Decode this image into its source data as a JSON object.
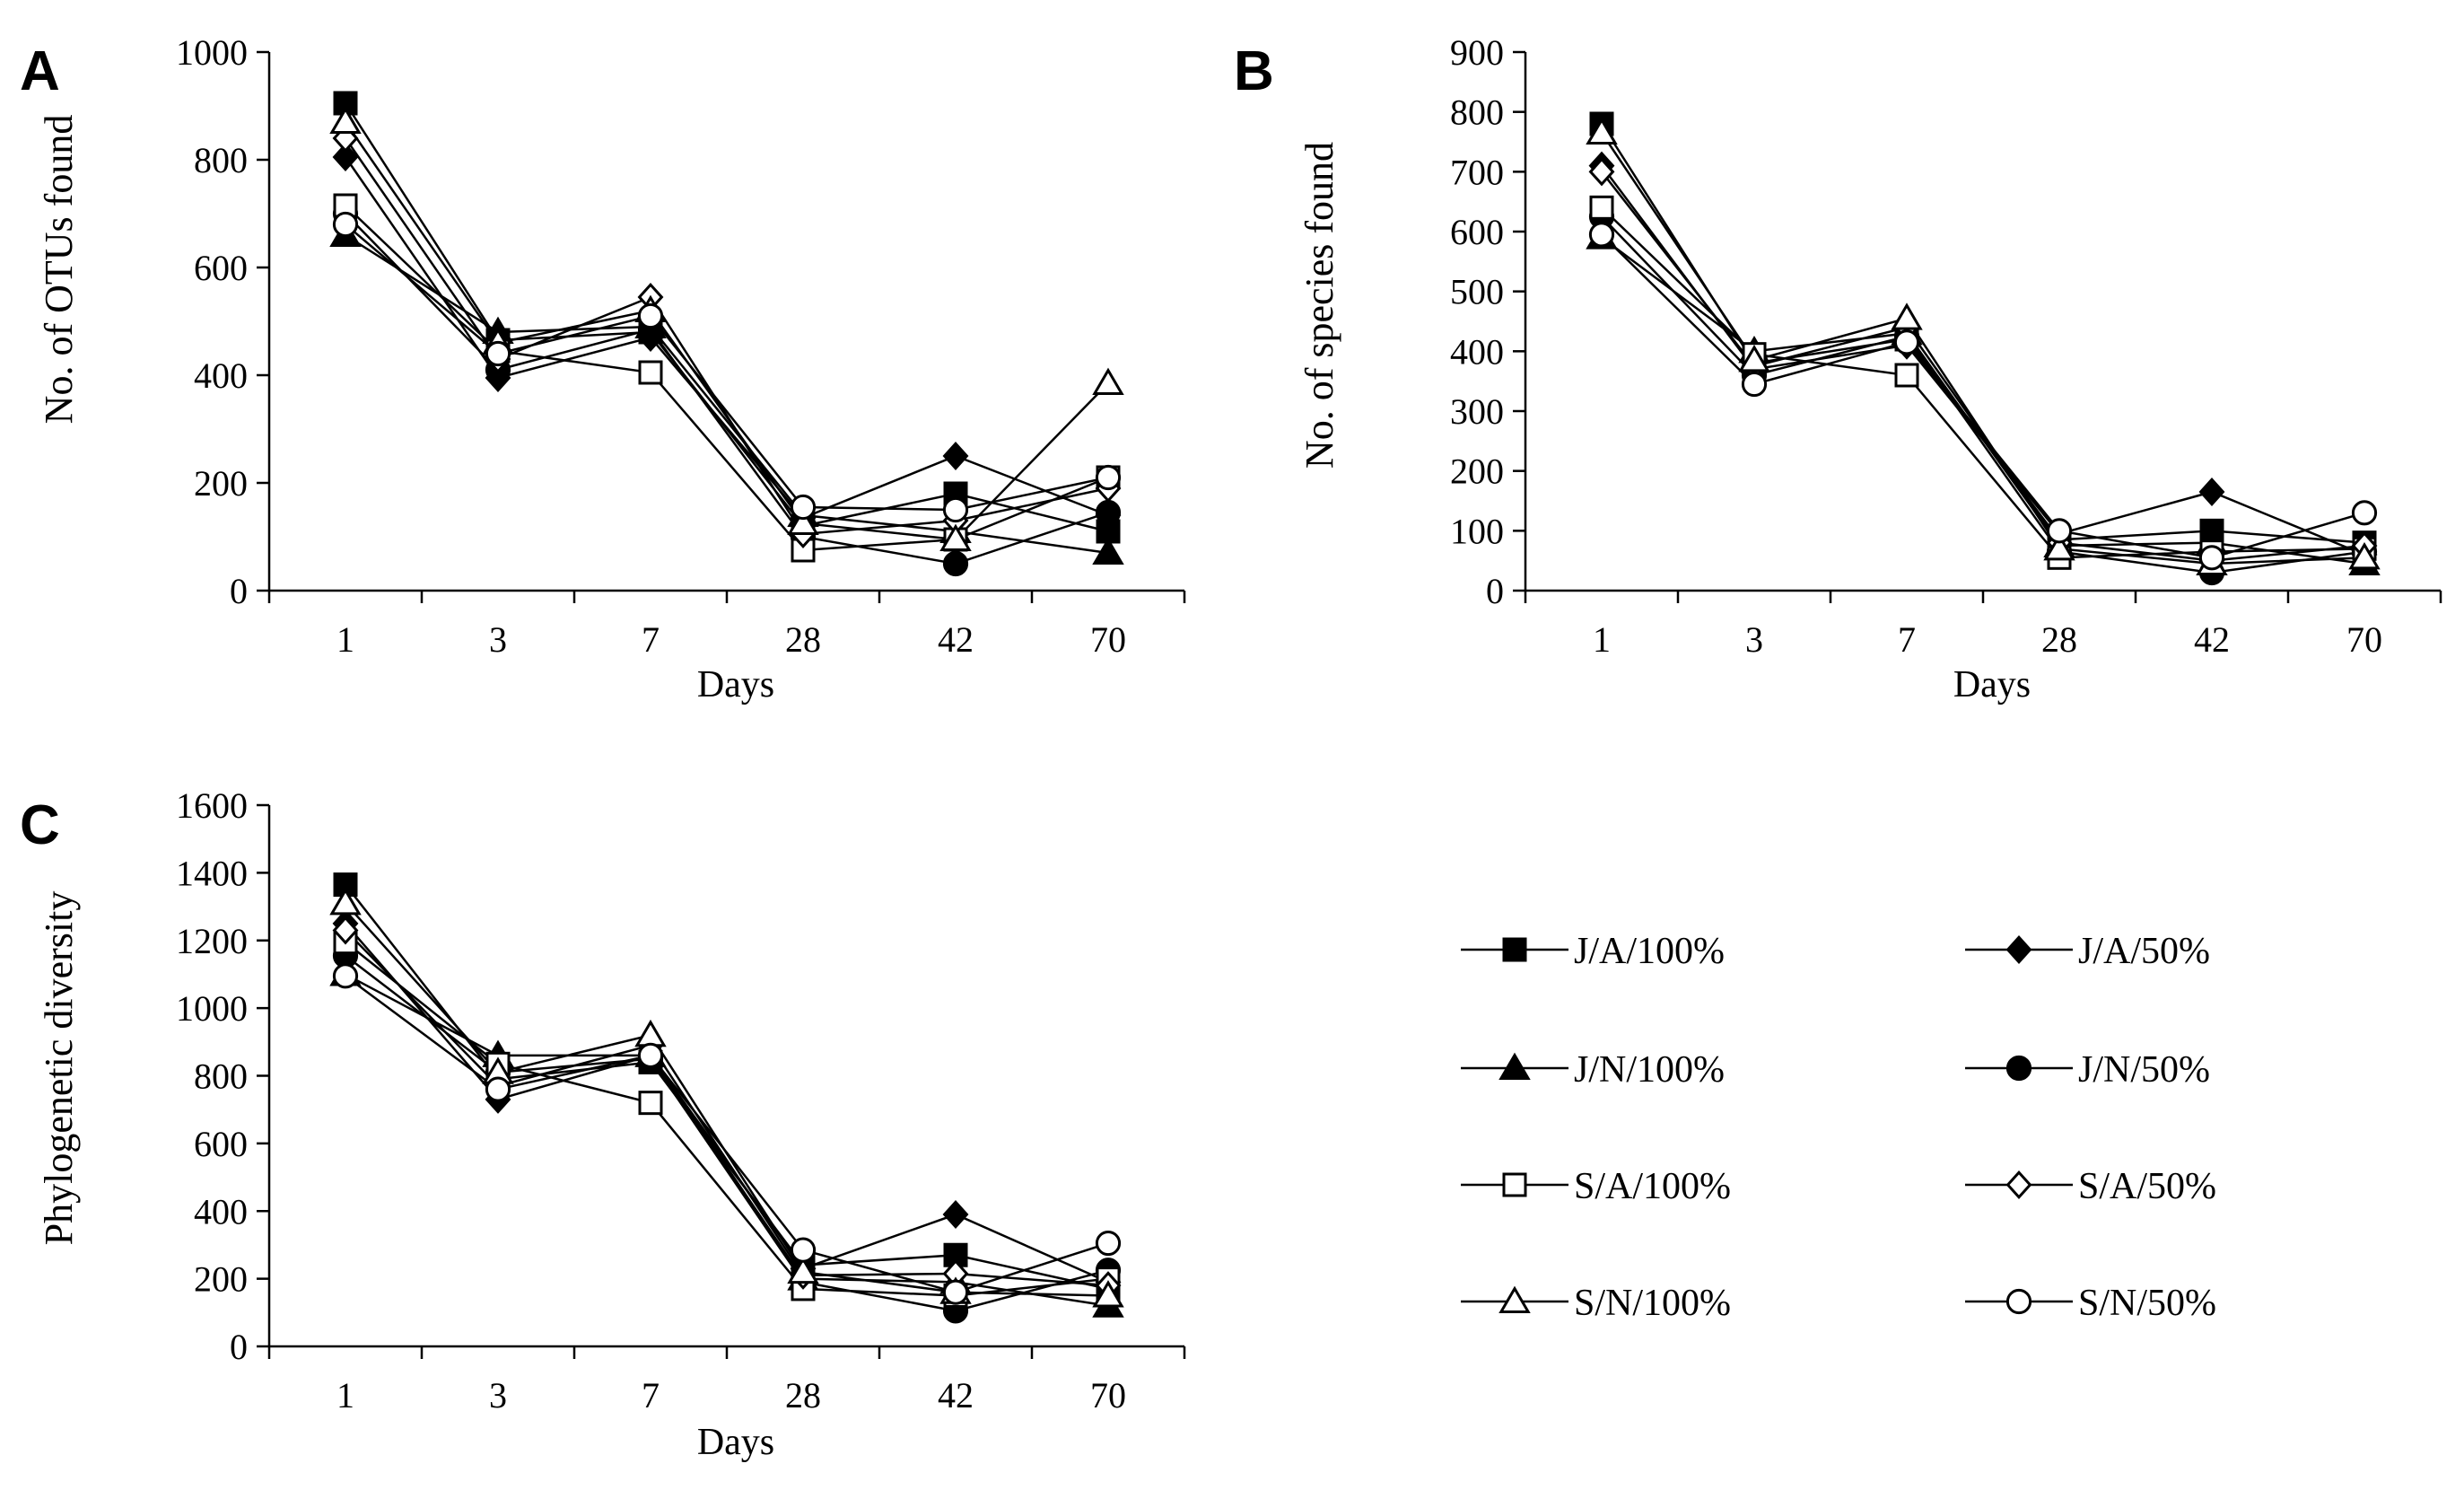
{
  "chart_data": [
    {
      "type": "line",
      "panel_label": "A",
      "categories": [
        "1",
        "3",
        "7",
        "28",
        "42",
        "70"
      ],
      "xlabel": "Days",
      "ylabel": "No. of OTUs found",
      "ylim": [
        0,
        1000
      ],
      "yticks": [
        0,
        200,
        400,
        600,
        800,
        1000
      ],
      "series": [
        {
          "name": "J/A/100%",
          "marker": "square-filled",
          "values": [
            905,
            465,
            480,
            120,
            180,
            110
          ]
        },
        {
          "name": "J/A/50%",
          "marker": "diamond-filled",
          "values": [
            805,
            395,
            470,
            135,
            250,
            140
          ]
        },
        {
          "name": "J/N/100%",
          "marker": "triangle-filled",
          "values": [
            660,
            480,
            490,
            140,
            110,
            70
          ]
        },
        {
          "name": "J/N/50%",
          "marker": "circle-filled",
          "values": [
            700,
            410,
            485,
            100,
            50,
            145
          ]
        },
        {
          "name": "S/A/100%",
          "marker": "square-open",
          "values": [
            715,
            445,
            405,
            75,
            95,
            210
          ]
        },
        {
          "name": "S/A/50%",
          "marker": "diamond-open",
          "values": [
            840,
            430,
            545,
            105,
            130,
            190
          ]
        },
        {
          "name": "S/N/100%",
          "marker": "triangle-open",
          "values": [
            870,
            460,
            520,
            125,
            95,
            385
          ]
        },
        {
          "name": "S/N/50%",
          "marker": "circle-open",
          "values": [
            680,
            440,
            510,
            155,
            150,
            210
          ]
        }
      ]
    },
    {
      "type": "line",
      "panel_label": "B",
      "categories": [
        "1",
        "3",
        "7",
        "28",
        "42",
        "70"
      ],
      "xlabel": "Days",
      "ylabel": "No. of species found",
      "ylim": [
        0,
        900
      ],
      "yticks": [
        0,
        100,
        200,
        300,
        400,
        500,
        600,
        700,
        800,
        900
      ],
      "series": [
        {
          "name": "J/A/100%",
          "marker": "square-filled",
          "values": [
            780,
            380,
            420,
            85,
            100,
            80
          ]
        },
        {
          "name": "J/A/50%",
          "marker": "diamond-filled",
          "values": [
            710,
            370,
            410,
            95,
            165,
            60
          ]
        },
        {
          "name": "J/N/100%",
          "marker": "triangle-filled",
          "values": [
            590,
            400,
            430,
            75,
            80,
            45
          ]
        },
        {
          "name": "J/N/50%",
          "marker": "circle-filled",
          "values": [
            625,
            360,
            425,
            65,
            30,
            65
          ]
        },
        {
          "name": "S/A/100%",
          "marker": "square-open",
          "values": [
            640,
            395,
            360,
            55,
            65,
            70
          ]
        },
        {
          "name": "S/A/50%",
          "marker": "diamond-open",
          "values": [
            700,
            375,
            440,
            80,
            50,
            75
          ]
        },
        {
          "name": "S/N/100%",
          "marker": "triangle-open",
          "values": [
            765,
            385,
            455,
            70,
            45,
            55
          ]
        },
        {
          "name": "S/N/50%",
          "marker": "circle-open",
          "values": [
            595,
            345,
            415,
            100,
            55,
            130
          ]
        }
      ]
    },
    {
      "type": "line",
      "panel_label": "C",
      "categories": [
        "1",
        "3",
        "7",
        "28",
        "42",
        "70"
      ],
      "xlabel": "Days",
      "ylabel": "Phylogenetic diversity",
      "ylim": [
        0,
        1600
      ],
      "yticks": [
        0,
        200,
        400,
        600,
        800,
        1000,
        1200,
        1400,
        1600
      ],
      "series": [
        {
          "name": "J/A/100%",
          "marker": "square-filled",
          "values": [
            1365,
            790,
            840,
            240,
            270,
            170
          ]
        },
        {
          "name": "J/A/50%",
          "marker": "diamond-filled",
          "values": [
            1250,
            730,
            860,
            230,
            390,
            190
          ]
        },
        {
          "name": "J/N/100%",
          "marker": "triangle-filled",
          "values": [
            1100,
            860,
            860,
            200,
            190,
            120
          ]
        },
        {
          "name": "J/N/50%",
          "marker": "circle-filled",
          "values": [
            1155,
            810,
            850,
            190,
            105,
            225
          ]
        },
        {
          "name": "S/A/100%",
          "marker": "square-open",
          "values": [
            1195,
            835,
            720,
            170,
            150,
            200
          ]
        },
        {
          "name": "S/A/50%",
          "marker": "diamond-open",
          "values": [
            1230,
            770,
            890,
            210,
            215,
            180
          ]
        },
        {
          "name": "S/N/100%",
          "marker": "triangle-open",
          "values": [
            1310,
            810,
            920,
            220,
            160,
            150
          ]
        },
        {
          "name": "S/N/50%",
          "marker": "circle-open",
          "values": [
            1095,
            760,
            860,
            285,
            160,
            305
          ]
        }
      ]
    }
  ],
  "legend": {
    "entries": [
      "J/A/100%",
      "J/A/50%",
      "J/N/100%",
      "J/N/50%",
      "S/A/100%",
      "S/A/50%",
      "S/N/100%",
      "S/N/50%"
    ]
  }
}
